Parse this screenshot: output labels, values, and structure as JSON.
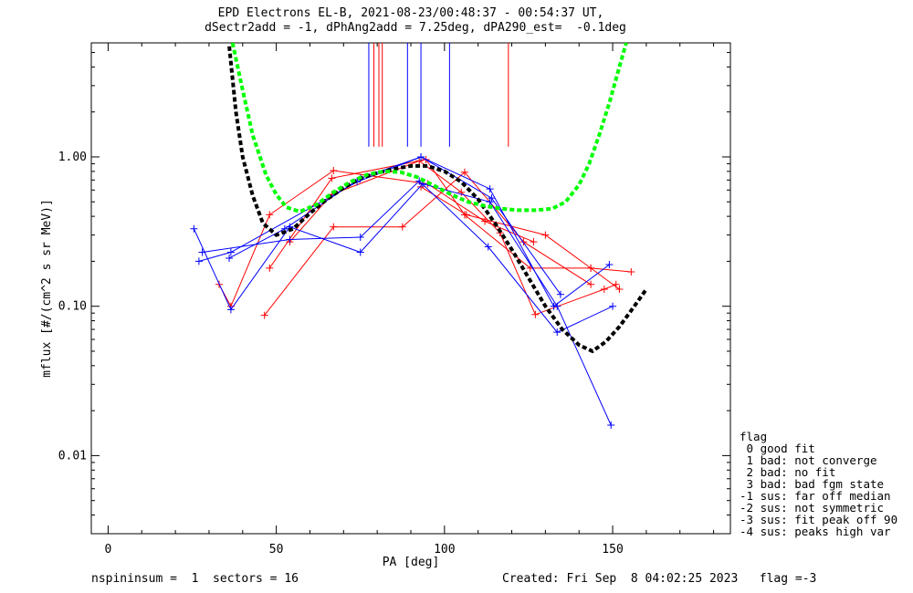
{
  "title": {
    "line1": "EPD Electrons EL-B, 2021-08-23/00:48:37 - 00:54:37 UT,",
    "line2": "dSectr2add = -1, dPhAng2add = 7.25deg, dPA290_est=  -0.1deg"
  },
  "legend": {
    "header": "flag",
    "items": [
      " 0 good fit",
      " 1 bad: not converge",
      " 2 bad: no fit",
      " 3 bad: bad fgm state",
      "-1 sus: far off median",
      "-2 sus: not symmetric",
      "-3 sus: fit peak off 90",
      "-4 sus: peaks high var"
    ]
  },
  "footer": {
    "left": "nspininsum =  1  sectors = 16",
    "right": "Created: Fri Sep  8 04:02:25 2023   flag =-3"
  },
  "colors": {
    "red": "#ff0000",
    "blue": "#0000ff",
    "green": "#00ff00",
    "black": "#000000"
  },
  "chart_data": {
    "type": "line",
    "xlabel": "PA [deg]",
    "ylabel": "mflux [#/(cm^2 s sr MeV)]",
    "xlim": [
      -5,
      185
    ],
    "ylim": [
      0.003,
      5.8
    ],
    "yscale": "log",
    "xticks": [
      0,
      50,
      100,
      150
    ],
    "xticklabels": [
      "0",
      "50",
      "100",
      "150"
    ],
    "yticks": [
      0.01,
      0.1,
      1.0
    ],
    "yticklabels": [
      "0.01",
      "0.10",
      "1.00"
    ],
    "vertical_markers": [
      {
        "color": "red",
        "x": 81.5
      },
      {
        "color": "red",
        "x": 80.5
      },
      {
        "color": "red",
        "x": 79.0
      },
      {
        "color": "red",
        "x": 119.0
      },
      {
        "color": "blue",
        "x": 77.5
      },
      {
        "color": "blue",
        "x": 89.0
      },
      {
        "color": "blue",
        "x": 93.0
      },
      {
        "color": "blue",
        "x": 101.5
      }
    ],
    "vertical_marker_range": [
      1.17,
      5.8
    ],
    "series": [
      {
        "color": "red",
        "x": [
          33,
          36.5,
          48,
          67,
          95,
          112,
          126.5
        ],
        "y": [
          0.14,
          0.1,
          0.41,
          0.81,
          0.66,
          0.37,
          0.27
        ]
      },
      {
        "color": "red",
        "x": [
          46.5,
          67,
          87.5,
          106,
          123.5,
          143.5
        ],
        "y": [
          0.087,
          0.34,
          0.34,
          0.79,
          0.27,
          0.14
        ]
      },
      {
        "color": "red",
        "x": [
          48,
          66.5,
          94.5,
          106,
          125.5,
          143.5,
          155.5
        ],
        "y": [
          0.18,
          0.72,
          0.96,
          0.41,
          0.18,
          0.18,
          0.17
        ]
      },
      {
        "color": "red",
        "x": [
          54,
          66.5,
          92.5,
          105,
          116.5,
          127,
          147.5,
          151
        ],
        "y": [
          0.27,
          0.56,
          0.94,
          0.58,
          0.31,
          0.088,
          0.13,
          0.14
        ]
      },
      {
        "color": "red",
        "x": [
          93,
          106.5,
          130,
          143.5,
          152
        ],
        "y": [
          0.63,
          0.41,
          0.3,
          0.18,
          0.13
        ]
      },
      {
        "color": "blue",
        "x": [
          25.5,
          36.5,
          54,
          75,
          93.5,
          113.5,
          133.5,
          149.5
        ],
        "y": [
          0.33,
          0.095,
          0.34,
          0.23,
          0.66,
          0.5,
          0.1,
          0.016
        ]
      },
      {
        "color": "blue",
        "x": [
          27,
          36.5,
          74,
          93,
          113.5,
          132.5,
          149
        ],
        "y": [
          0.2,
          0.23,
          0.68,
          1.0,
          0.61,
          0.1,
          0.19
        ]
      },
      {
        "color": "blue",
        "x": [
          28,
          54,
          75,
          92.5,
          113,
          133.5,
          150
        ],
        "y": [
          0.23,
          0.28,
          0.29,
          0.69,
          0.25,
          0.067,
          0.1
        ]
      },
      {
        "color": "blue",
        "x": [
          36,
          52.5,
          75,
          93,
          114,
          134.5
        ],
        "y": [
          0.21,
          0.33,
          0.72,
          1.0,
          0.53,
          0.12
        ]
      }
    ],
    "fits": [
      {
        "color": "black",
        "style": "dashed",
        "x": [
          36,
          38,
          40,
          43,
          46,
          50,
          55,
          60,
          65,
          70,
          75,
          80,
          85,
          90,
          95,
          100,
          105,
          110,
          115,
          120,
          125,
          130,
          135,
          140,
          144,
          148,
          152,
          156,
          160
        ],
        "y": [
          5.5,
          2.0,
          1.0,
          0.55,
          0.36,
          0.3,
          0.33,
          0.42,
          0.52,
          0.62,
          0.72,
          0.78,
          0.83,
          0.87,
          0.87,
          0.8,
          0.68,
          0.52,
          0.36,
          0.24,
          0.155,
          0.1,
          0.07,
          0.055,
          0.05,
          0.058,
          0.073,
          0.097,
          0.13
        ]
      },
      {
        "color": "green",
        "style": "dashed",
        "x": [
          37,
          40,
          43,
          47,
          50,
          53,
          57,
          62,
          67,
          72,
          77,
          82,
          87,
          92,
          97,
          102,
          107,
          112,
          117,
          122,
          127,
          132,
          136,
          140,
          143,
          146,
          149,
          152,
          154
        ],
        "y": [
          5.8,
          2.8,
          1.4,
          0.75,
          0.56,
          0.46,
          0.43,
          0.48,
          0.58,
          0.68,
          0.76,
          0.8,
          0.79,
          0.73,
          0.64,
          0.56,
          0.5,
          0.47,
          0.45,
          0.44,
          0.44,
          0.45,
          0.5,
          0.65,
          0.9,
          1.4,
          2.3,
          4.0,
          5.8
        ]
      }
    ]
  }
}
